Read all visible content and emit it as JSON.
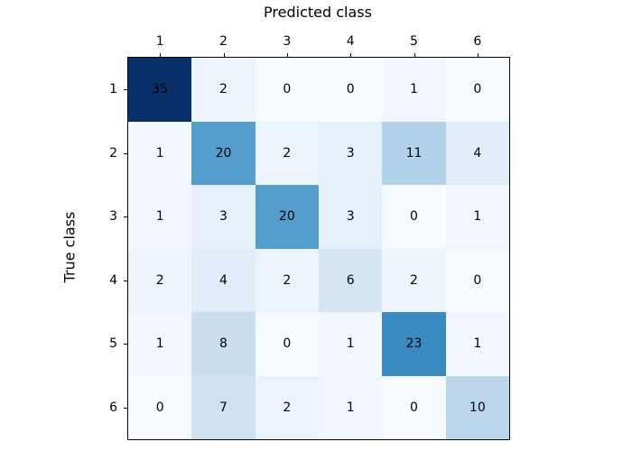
{
  "figure": {
    "background": "#ffffff",
    "axes_edge_color": "#000000"
  },
  "chart_data": {
    "type": "heatmap",
    "title": "",
    "xlabel": "Predicted class",
    "ylabel": "True class",
    "x_tick_labels": [
      "1",
      "2",
      "3",
      "4",
      "5",
      "6"
    ],
    "y_tick_labels": [
      "1",
      "2",
      "3",
      "4",
      "5",
      "6"
    ],
    "matrix": [
      [
        35,
        2,
        0,
        0,
        1,
        0
      ],
      [
        1,
        20,
        2,
        3,
        11,
        4
      ],
      [
        1,
        3,
        20,
        3,
        0,
        1
      ],
      [
        2,
        4,
        2,
        6,
        2,
        0
      ],
      [
        1,
        8,
        0,
        1,
        23,
        1
      ],
      [
        0,
        7,
        2,
        1,
        0,
        10
      ]
    ],
    "vmin": 0,
    "vmax": 35,
    "colormap_name": "Blues",
    "colormap_stops": [
      "#f7fbff",
      "#deebf7",
      "#c6dbef",
      "#9ecae1",
      "#6baed6",
      "#4292c6",
      "#2171b5",
      "#08519c",
      "#08306b"
    ],
    "cell_text_color": "#000000",
    "grid": false,
    "legend": "none"
  }
}
